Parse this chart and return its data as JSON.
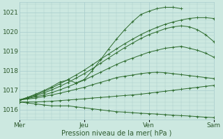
{
  "title": "",
  "xlabel": "Pression niveau de la mer( hPa )",
  "background_color": "#cce8e0",
  "grid_color": "#a8cccc",
  "line_color": "#2d6b2d",
  "ylim": [
    1015.5,
    1021.5
  ],
  "xlim": [
    0,
    72
  ],
  "yticks": [
    1016,
    1017,
    1018,
    1019,
    1020,
    1021
  ],
  "xtick_labels": [
    "Mer",
    "Jeu",
    "Ven",
    "Sam"
  ],
  "xtick_positions": [
    0,
    24,
    48,
    72
  ],
  "series": [
    {
      "x": [
        0,
        3,
        6,
        9,
        12,
        15,
        18,
        21,
        24,
        27,
        30,
        33,
        36,
        39,
        42,
        45,
        48,
        51,
        54,
        57,
        60,
        63,
        66,
        69,
        72
      ],
      "y": [
        1016.4,
        1016.35,
        1016.3,
        1016.25,
        1016.2,
        1016.2,
        1016.2,
        1016.15,
        1016.1,
        1016.05,
        1016.0,
        1015.95,
        1015.9,
        1015.88,
        1015.85,
        1015.82,
        1015.8,
        1015.78,
        1015.75,
        1015.72,
        1015.7,
        1015.68,
        1015.65,
        1015.62,
        1015.6
      ]
    },
    {
      "x": [
        0,
        3,
        6,
        9,
        12,
        15,
        18,
        21,
        24,
        27,
        30,
        33,
        36,
        39,
        42,
        45,
        48,
        51,
        54,
        57,
        60,
        63,
        66,
        69,
        72
      ],
      "y": [
        1016.4,
        1016.4,
        1016.4,
        1016.42,
        1016.44,
        1016.47,
        1016.5,
        1016.53,
        1016.56,
        1016.6,
        1016.63,
        1016.66,
        1016.7,
        1016.73,
        1016.76,
        1016.8,
        1016.85,
        1016.9,
        1016.95,
        1017.0,
        1017.05,
        1017.1,
        1017.15,
        1017.2,
        1017.25
      ]
    },
    {
      "x": [
        0,
        3,
        6,
        9,
        12,
        15,
        18,
        21,
        24,
        27,
        30,
        33,
        36,
        39,
        42,
        45,
        48,
        51,
        54,
        57,
        60,
        63,
        66,
        69,
        72
      ],
      "y": [
        1016.5,
        1016.55,
        1016.6,
        1016.68,
        1016.76,
        1016.85,
        1016.95,
        1017.05,
        1017.15,
        1017.28,
        1017.4,
        1017.52,
        1017.65,
        1017.72,
        1017.78,
        1017.85,
        1017.9,
        1017.92,
        1017.9,
        1017.85,
        1017.8,
        1017.75,
        1017.7,
        1017.65,
        1017.6
      ]
    },
    {
      "x": [
        0,
        3,
        6,
        9,
        12,
        15,
        18,
        21,
        24,
        27,
        30,
        33,
        36,
        39,
        42,
        45,
        48,
        51,
        54,
        57,
        60,
        63,
        66,
        69,
        72
      ],
      "y": [
        1016.5,
        1016.58,
        1016.66,
        1016.76,
        1016.88,
        1017.02,
        1017.18,
        1017.35,
        1017.52,
        1017.72,
        1017.92,
        1018.12,
        1018.32,
        1018.5,
        1018.65,
        1018.8,
        1018.95,
        1019.05,
        1019.15,
        1019.2,
        1019.25,
        1019.15,
        1019.05,
        1018.9,
        1018.7
      ]
    },
    {
      "x": [
        0,
        3,
        6,
        9,
        12,
        15,
        18,
        21,
        24,
        27,
        30,
        33,
        36,
        39,
        42,
        45,
        48,
        51,
        54,
        57,
        60,
        63,
        66,
        69,
        72
      ],
      "y": [
        1016.5,
        1016.6,
        1016.72,
        1016.86,
        1017.02,
        1017.2,
        1017.4,
        1017.62,
        1017.85,
        1018.1,
        1018.38,
        1018.65,
        1018.92,
        1019.18,
        1019.42,
        1019.65,
        1019.85,
        1020.0,
        1020.15,
        1020.25,
        1020.3,
        1020.25,
        1020.1,
        1019.85,
        1019.5
      ]
    },
    {
      "x": [
        0,
        3,
        6,
        9,
        12,
        15,
        18,
        21,
        24,
        27,
        30,
        33,
        36,
        39,
        42,
        45,
        48,
        51,
        54,
        57,
        60,
        63,
        66,
        69,
        72
      ],
      "y": [
        1016.5,
        1016.62,
        1016.76,
        1016.93,
        1017.12,
        1017.33,
        1017.55,
        1017.78,
        1018.03,
        1018.3,
        1018.58,
        1018.85,
        1019.12,
        1019.38,
        1019.62,
        1019.85,
        1020.05,
        1020.22,
        1020.38,
        1020.5,
        1020.6,
        1020.68,
        1020.72,
        1020.72,
        1020.68
      ]
    },
    {
      "x": [
        0,
        3,
        6,
        9,
        12,
        15,
        18,
        21,
        24,
        27,
        30,
        33,
        36,
        39,
        42,
        45,
        48,
        51,
        54,
        57,
        60
      ],
      "y": [
        1016.5,
        1016.64,
        1016.8,
        1016.98,
        1017.18,
        1017.42,
        1017.52,
        1017.38,
        1017.55,
        1018.0,
        1018.55,
        1019.1,
        1019.62,
        1020.1,
        1020.52,
        1020.88,
        1021.05,
        1021.18,
        1021.25,
        1021.25,
        1021.18
      ]
    }
  ]
}
